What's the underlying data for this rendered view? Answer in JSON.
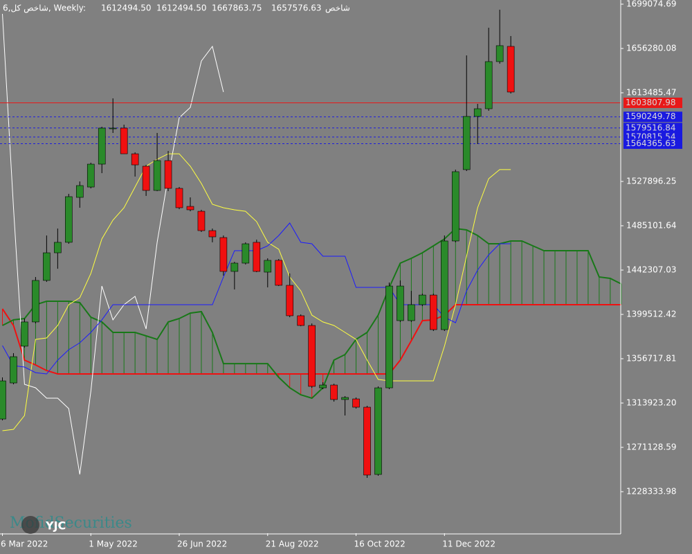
{
  "chart_data": {
    "type": "candlestick",
    "title": "6,شاخص کل, Weekly:",
    "header_values": [
      "1612494.50",
      "1612494.50",
      "1667863.75",
      "1657576.63"
    ],
    "indicator_label": "شاخص",
    "categories": [
      "6 Mar 2022",
      null,
      null,
      null,
      null,
      null,
      null,
      null,
      "1 May 2022",
      null,
      null,
      null,
      null,
      null,
      null,
      null,
      "26 Jun 2022",
      null,
      null,
      null,
      null,
      null,
      null,
      null,
      "21 Aug 2022",
      null,
      null,
      null,
      null,
      null,
      null,
      null,
      "16 Oct 2022",
      null,
      null,
      null,
      null,
      null,
      null,
      null,
      "11 Dec 2022",
      null,
      null,
      null,
      null,
      null,
      null,
      null,
      null,
      null,
      null,
      null,
      null,
      null,
      null,
      null,
      null
    ],
    "open": [
      1298500,
      1333300,
      1368800,
      1392200,
      1432300,
      1459000,
      1469100,
      1512500,
      1522500,
      1544600,
      1578700,
      1579400,
      1554600,
      1542600,
      1519200,
      1548000,
      1521200,
      1503800,
      1499100,
      1480400,
      1473700,
      1441000,
      1449000,
      1469100,
      1440300,
      1451700,
      1427600,
      1398200,
      1388800,
      1328600,
      1331300,
      1317300,
      1317900,
      1309900,
      1245000,
      1328600,
      1393500,
      1393500,
      1408900,
      1418200,
      1384800,
      1470400,
      1539300,
      1590700,
      1598100,
      1643600,
      1658300,
      null,
      null,
      null,
      null,
      null,
      null,
      null,
      null,
      null,
      null
    ],
    "high": [
      1338700,
      1362100,
      1395500,
      1435600,
      1475700,
      1482400,
      1515900,
      1527900,
      1546000,
      1580700,
      1608100,
      1582700,
      1556000,
      1543900,
      1574700,
      1557300,
      1522500,
      1512500,
      1500500,
      1482400,
      1475700,
      1450300,
      1469100,
      1471700,
      1453700,
      1453000,
      1439000,
      1399500,
      1390800,
      1334000,
      1332600,
      1320600,
      1319300,
      1311200,
      1330000,
      1430300,
      1432300,
      1422200,
      1419600,
      1419600,
      1475700,
      1539300,
      1649600,
      1602800,
      1676300,
      1693700,
      1668300,
      null,
      null,
      null,
      null,
      null,
      null,
      null,
      null,
      null,
      null
    ],
    "low": [
      1297200,
      1332000,
      1367400,
      1390800,
      1430900,
      1443600,
      1467700,
      1502500,
      1521200,
      1535900,
      1574700,
      1554600,
      1532600,
      1513900,
      1518500,
      1518500,
      1501100,
      1499100,
      1479100,
      1469100,
      1437000,
      1423600,
      1447700,
      1440300,
      1425600,
      1426900,
      1396800,
      1388100,
      1328600,
      1327300,
      1315300,
      1301900,
      1308600,
      1241700,
      1243700,
      1327300,
      1392200,
      1392200,
      1407500,
      1383500,
      1383500,
      1469100,
      1537900,
      1564000,
      1596100,
      1641600,
      1612800,
      null,
      null,
      null,
      null,
      null,
      null,
      null,
      null,
      null,
      null
    ],
    "close": [
      1335300,
      1358700,
      1392200,
      1432300,
      1459000,
      1469100,
      1513200,
      1523900,
      1544600,
      1579400,
      1579400,
      1554600,
      1543900,
      1519200,
      1548000,
      1521200,
      1502500,
      1500500,
      1480400,
      1474400,
      1441000,
      1449000,
      1467700,
      1441000,
      1451700,
      1427600,
      1398200,
      1388800,
      1330000,
      1331300,
      1317300,
      1319300,
      1309900,
      1244400,
      1328600,
      1426900,
      1426900,
      1408900,
      1418200,
      1384800,
      1470400,
      1537300,
      1590700,
      1598100,
      1643600,
      1659000,
      1614200,
      null,
      null,
      null,
      null,
      null,
      null,
      null,
      null,
      null,
      null
    ],
    "up_color": "#2a8a2a",
    "down_color": "#f01010",
    "cloud": {
      "span_a": {
        "color": "#187818",
        "values": [
          1388800,
          1394200,
          1395500,
          1408900,
          1412200,
          1412200,
          1412200,
          1410900,
          1396800,
          1392200,
          1382100,
          1382100,
          1382100,
          1378800,
          1375400,
          1392200,
          1395500,
          1400800,
          1402200,
          1382100,
          1352000,
          1352000,
          1352000,
          1352000,
          1352000,
          1338700,
          1328600,
          1321900,
          1318600,
          1328600,
          1355400,
          1360700,
          1375400,
          1382100,
          1398800,
          1425600,
          1449000,
          1453700,
          1459000,
          1465700,
          1472400,
          1482400,
          1481100,
          1475700,
          1467700,
          1467700,
          1470400,
          1470400,
          1465700,
          1461000,
          1461000,
          1461000,
          1461000,
          1461000,
          1435600,
          1434300,
          1428900
        ]
      },
      "span_b": {
        "color": "#f01010",
        "values": [
          1404900,
          1388800,
          1355400,
          1350700,
          1345300,
          1342000,
          1342000,
          1342000,
          1342000,
          1342000,
          1342000,
          1342000,
          1342000,
          1342000,
          1342000,
          1342000,
          1342000,
          1342000,
          1342000,
          1342000,
          1342000,
          1342000,
          1342000,
          1342000,
          1342000,
          1342000,
          1342000,
          1342000,
          1342000,
          1342000,
          1342000,
          1342000,
          1342000,
          1342000,
          1342000,
          1342000,
          1355400,
          1374100,
          1393500,
          1394200,
          1398800,
          1408900,
          1408900,
          1408900,
          1408900,
          1408900,
          1408900,
          1408900,
          1408900,
          1408900,
          1408900,
          1408900,
          1408900,
          1408900,
          1408900,
          1408900,
          1408900
        ]
      }
    },
    "lines": [
      {
        "color": "#ffffff",
        "values": [
          1689700,
          1502500,
          1332000,
          1328600,
          1318600,
          1318600,
          1308600,
          1245000,
          1325300,
          1426900,
          1394200,
          1408900,
          1416900,
          1385500,
          1469100,
          1532600,
          1589400,
          1599400,
          1644200,
          1658300,
          1614200,
          null,
          null,
          null,
          null,
          null,
          null,
          null,
          null,
          null,
          null,
          null,
          null,
          null,
          null,
          null,
          null,
          null,
          null,
          null,
          null,
          null,
          null,
          null,
          null,
          null,
          null,
          null,
          null,
          null,
          null,
          null,
          null,
          null,
          null,
          null,
          null
        ]
      },
      {
        "color": "#ffff40",
        "values": [
          1287200,
          1288500,
          1301900,
          1375400,
          1376800,
          1388800,
          1408900,
          1415600,
          1439000,
          1472400,
          1490500,
          1502500,
          1522500,
          1542600,
          1549300,
          1554600,
          1554600,
          1542600,
          1525900,
          1505800,
          1502500,
          1500500,
          1499100,
          1489100,
          1469100,
          1462400,
          1435600,
          1422200,
          1398800,
          1392200,
          1388800,
          1382100,
          1375400,
          1355400,
          1336700,
          1335300,
          1335300,
          1335300,
          1335300,
          1335300,
          1368800,
          1408900,
          1455700,
          1502500,
          1530600,
          1539300,
          1539300,
          null,
          null,
          null,
          null,
          null,
          null,
          null,
          null,
          null,
          null
        ]
      },
      {
        "color": "#1a1aff",
        "values": [
          1369400,
          1350000,
          1348700,
          1343300,
          1342000,
          1355400,
          1365400,
          1372100,
          1382100,
          1394200,
          1408900,
          1408900,
          1408900,
          1408900,
          1408900,
          1408900,
          1408900,
          1408900,
          1408900,
          1408900,
          1435600,
          1461000,
          1461000,
          1461000,
          1465700,
          1475700,
          1487800,
          1469100,
          1467700,
          1455700,
          1455700,
          1455700,
          1425600,
          1425600,
          1425600,
          1425600,
          1408900,
          1408900,
          1408900,
          1408900,
          1396800,
          1391500,
          1422200,
          1442300,
          1457000,
          1467700,
          1467700,
          null,
          null,
          null,
          null,
          null,
          null,
          null,
          null,
          null,
          null
        ]
      }
    ],
    "levels": [
      {
        "value": 1603807.98,
        "color": "#e81818"
      },
      {
        "value": 1590249.78,
        "color": "#1a1ae0"
      },
      {
        "value": 1579516.84,
        "color": "#1a1ae0"
      },
      {
        "value": 1570815.54,
        "color": "#1a1ae0"
      },
      {
        "value": 1564365.63,
        "color": "#1a1ae0"
      }
    ],
    "ylim": [
      1188211,
      1703087
    ],
    "yticks": [
      1699074.69,
      1656280.08,
      1613485.47,
      1527896.25,
      1485101.64,
      1442307.03,
      1399512.42,
      1356717.81,
      {
        "value": 1313923.2,
        "label": "1313923.20"
      },
      1271128.59,
      1228333.98
    ]
  },
  "watermark": {
    "text": "MofidSecurities",
    "logo": "YJC"
  }
}
